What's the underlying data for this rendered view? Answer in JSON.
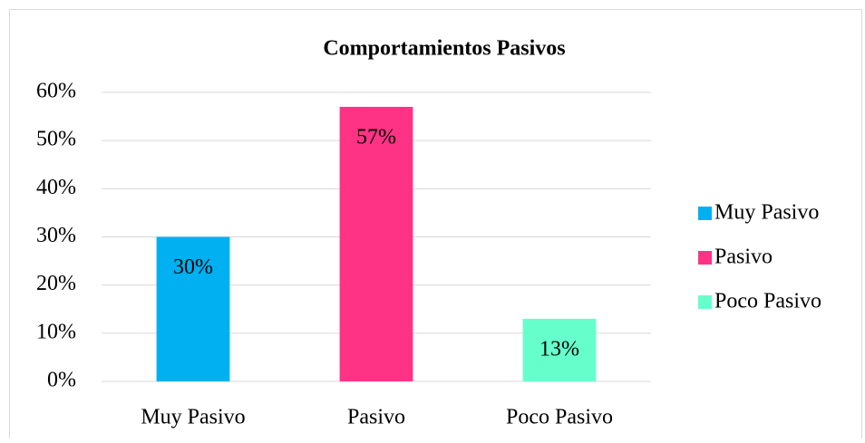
{
  "chart_data": {
    "type": "bar",
    "title": "Comportamientos Pasivos",
    "categories": [
      "Muy Pasivo",
      "Pasivo",
      "Poco Pasivo"
    ],
    "values": [
      30,
      57,
      13
    ],
    "value_labels": [
      "30%",
      "57%",
      "13%"
    ],
    "colors": [
      "#00b0f0",
      "#ff3385",
      "#66ffcc"
    ],
    "ylim": [
      0,
      60
    ],
    "yticks": [
      {
        "value": 0,
        "label": "0%"
      },
      {
        "value": 10,
        "label": "10%"
      },
      {
        "value": 20,
        "label": "20%"
      },
      {
        "value": 30,
        "label": "30%"
      },
      {
        "value": 40,
        "label": "40%"
      },
      {
        "value": 50,
        "label": "50%"
      },
      {
        "value": 60,
        "label": "60%"
      }
    ],
    "grid": true,
    "legend": "right"
  }
}
